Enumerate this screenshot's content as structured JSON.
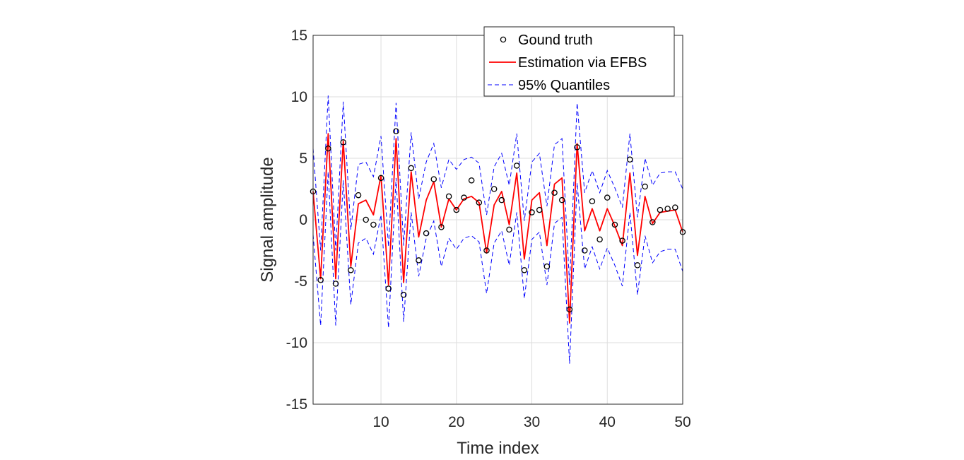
{
  "chart_data": {
    "type": "line",
    "title": "",
    "xlabel": "Time index",
    "ylabel": "Signal amplitude",
    "xlim": [
      1,
      50
    ],
    "ylim": [
      -15,
      15
    ],
    "xticks": [
      10,
      20,
      30,
      40,
      50
    ],
    "yticks": [
      -15,
      -10,
      -5,
      0,
      5,
      10,
      15
    ],
    "grid": true,
    "legend_position": "top-right",
    "x": [
      1,
      2,
      3,
      4,
      5,
      6,
      7,
      8,
      9,
      10,
      11,
      12,
      13,
      14,
      15,
      16,
      17,
      18,
      19,
      20,
      21,
      22,
      23,
      24,
      25,
      26,
      27,
      28,
      29,
      30,
      31,
      32,
      33,
      34,
      35,
      36,
      37,
      38,
      39,
      40,
      41,
      42,
      43,
      44,
      45,
      46,
      47,
      48,
      49,
      50
    ],
    "series": [
      {
        "name": "Gound truth",
        "style": "markers",
        "color": "#000000",
        "values": [
          2.3,
          -4.9,
          5.8,
          -5.2,
          6.3,
          -4.1,
          2.0,
          0.0,
          -0.4,
          3.4,
          -5.6,
          7.2,
          -6.1,
          4.2,
          -3.3,
          -1.1,
          3.3,
          -0.6,
          1.9,
          0.8,
          1.8,
          3.2,
          1.4,
          -2.5,
          2.5,
          1.6,
          -0.8,
          4.4,
          -4.1,
          0.6,
          0.8,
          -3.8,
          2.2,
          1.6,
          -7.3,
          5.9,
          -2.5,
          1.5,
          -1.6,
          1.8,
          -0.4,
          -1.7,
          4.9,
          -3.7,
          2.7,
          -0.2,
          0.8,
          0.9,
          1.0,
          -1.0
        ]
      },
      {
        "name": "Estimation via EFBS",
        "style": "solid",
        "color": "#ff0000",
        "values": [
          2.3,
          -4.8,
          7.0,
          -4.8,
          6.4,
          -3.8,
          1.3,
          1.6,
          0.4,
          3.6,
          -5.3,
          6.6,
          -5.1,
          3.9,
          -1.4,
          1.6,
          3.1,
          -0.6,
          1.7,
          0.8,
          1.7,
          1.9,
          1.4,
          -2.7,
          1.2,
          2.3,
          -0.4,
          3.8,
          -3.2,
          1.6,
          2.2,
          -2.1,
          2.9,
          3.4,
          -8.4,
          6.2,
          -0.9,
          0.9,
          -0.9,
          0.9,
          -0.5,
          -2.1,
          3.8,
          -2.9,
          1.9,
          -0.3,
          0.6,
          0.7,
          0.8,
          -1.0
        ]
      },
      {
        "name": "95% Quantiles",
        "style": "dashed",
        "color": "#0000ff",
        "values": [
          5.8,
          -2.5,
          10.1,
          -2.5,
          9.6,
          -0.8,
          4.5,
          4.7,
          3.5,
          6.8,
          -2.2,
          9.5,
          -2.1,
          7.1,
          1.7,
          4.7,
          6.2,
          2.6,
          4.9,
          4.1,
          4.9,
          5.1,
          4.6,
          0.4,
          4.3,
          5.4,
          2.8,
          7.0,
          -0.1,
          4.7,
          5.4,
          1.1,
          6.1,
          6.6,
          -5.3,
          9.5,
          2.2,
          4.0,
          2.2,
          4.0,
          2.6,
          1.0,
          7.0,
          0.2,
          5.0,
          2.8,
          3.8,
          3.9,
          3.9,
          2.5
        ]
      },
      {
        "name": "95% Quantiles lower",
        "style": "dashed",
        "color": "#0000ff",
        "values": [
          -1.2,
          -8.6,
          3.9,
          -8.6,
          3.2,
          -6.9,
          -1.9,
          -1.5,
          -2.8,
          0.4,
          -8.8,
          3.4,
          -8.3,
          0.6,
          -4.6,
          -1.5,
          -0.1,
          -3.8,
          -1.5,
          -2.4,
          -1.5,
          -1.3,
          -1.8,
          -6.0,
          -1.9,
          -0.9,
          -3.7,
          0.6,
          -6.4,
          -1.6,
          -1.0,
          -5.3,
          -0.3,
          0.2,
          -11.7,
          3.0,
          -4.0,
          -2.2,
          -4.0,
          -2.3,
          -3.7,
          -5.4,
          0.6,
          -6.1,
          -1.3,
          -3.5,
          -2.6,
          -2.4,
          -2.4,
          -4.2
        ]
      }
    ]
  },
  "legend": {
    "items": [
      {
        "label": "Gound truth",
        "style": "markers",
        "color": "#000000"
      },
      {
        "label": "Estimation via EFBS",
        "style": "solid",
        "color": "#ff0000"
      },
      {
        "label": "95% Quantiles",
        "style": "dashed",
        "color": "#0000ff"
      }
    ]
  }
}
